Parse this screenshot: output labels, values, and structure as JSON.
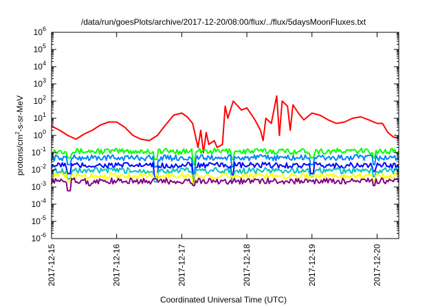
{
  "chart_data": {
    "type": "line",
    "title": "/data/run/goesPlots/archive/2017-12-20/08:00/flux/../flux/5daysMoonFluxes.txt",
    "xlabel": "Coordinated Universal Time (UTC)",
    "ylabel": {
      "pre": "protons/cm",
      "sup": "2",
      "post": "-s-sr-MeV"
    },
    "y_scale": "log",
    "ylim": [
      1e-06,
      1000000.0
    ],
    "y_ticks": [
      {
        "exp": "-6"
      },
      {
        "exp": "-5"
      },
      {
        "exp": "-4"
      },
      {
        "exp": "-3"
      },
      {
        "exp": "-2"
      },
      {
        "exp": "-1"
      },
      {
        "exp": "0"
      },
      {
        "exp": "1"
      },
      {
        "exp": "2"
      },
      {
        "exp": "3"
      },
      {
        "exp": "4"
      },
      {
        "exp": "5"
      },
      {
        "exp": "6"
      }
    ],
    "y_tick_base": "10",
    "xlim": [
      "2017-12-15 00:00",
      "2017-12-20 08:00"
    ],
    "x_ticks": [
      "2017-12-15",
      "2017-12-16",
      "2017-12-17",
      "2017-12-18",
      "2017-12-19",
      "2017-12-20"
    ],
    "grid": false,
    "legend": "none",
    "series": [
      {
        "color": "#ff0000",
        "points": [
          [
            "2017-12-15 00:00",
            3.5
          ],
          [
            "2017-12-15 03:00",
            2.0
          ],
          [
            "2017-12-15 06:00",
            1.0
          ],
          [
            "2017-12-15 09:00",
            0.6
          ],
          [
            "2017-12-15 12:00",
            1.2
          ],
          [
            "2017-12-15 15:00",
            2.0
          ],
          [
            "2017-12-15 18:00",
            4.0
          ],
          [
            "2017-12-15 21:00",
            6.0
          ],
          [
            "2017-12-16 00:00",
            6.0
          ],
          [
            "2017-12-16 03:00",
            3.0
          ],
          [
            "2017-12-16 06:00",
            1.0
          ],
          [
            "2017-12-16 09:00",
            0.6
          ],
          [
            "2017-12-16 12:00",
            0.5
          ],
          [
            "2017-12-16 15:00",
            1.0
          ],
          [
            "2017-12-16 18:00",
            4.0
          ],
          [
            "2017-12-16 21:00",
            15
          ],
          [
            "2017-12-17 00:00",
            20
          ],
          [
            "2017-12-17 02:00",
            12
          ],
          [
            "2017-12-17 04:00",
            5.0
          ],
          [
            "2017-12-17 06:00",
            0.2
          ],
          [
            "2017-12-17 07:00",
            2.0
          ],
          [
            "2017-12-17 08:00",
            0.1
          ],
          [
            "2017-12-17 09:00",
            1.5
          ],
          [
            "2017-12-17 10:00",
            0.3
          ],
          [
            "2017-12-17 12:00",
            0.5
          ],
          [
            "2017-12-17 13:00",
            0.2
          ],
          [
            "2017-12-17 15:00",
            0.3
          ],
          [
            "2017-12-17 16:00",
            50
          ],
          [
            "2017-12-17 17:00",
            10
          ],
          [
            "2017-12-17 19:00",
            100
          ],
          [
            "2017-12-17 22:00",
            30
          ],
          [
            "2017-12-18 00:00",
            40
          ],
          [
            "2017-12-18 03:00",
            8.0
          ],
          [
            "2017-12-18 05:00",
            2.0
          ],
          [
            "2017-12-18 06:00",
            0.5
          ],
          [
            "2017-12-18 07:00",
            10
          ],
          [
            "2017-12-18 09:00",
            5.0
          ],
          [
            "2017-12-18 11:00",
            200
          ],
          [
            "2017-12-18 12:00",
            1.0
          ],
          [
            "2017-12-18 13:00",
            100
          ],
          [
            "2017-12-18 15:00",
            50
          ],
          [
            "2017-12-18 16:00",
            2.0
          ],
          [
            "2017-12-18 17:00",
            60
          ],
          [
            "2017-12-18 19:00",
            20
          ],
          [
            "2017-12-18 21:00",
            8.0
          ],
          [
            "2017-12-19 00:00",
            20
          ],
          [
            "2017-12-19 03:00",
            15
          ],
          [
            "2017-12-19 06:00",
            8.0
          ],
          [
            "2017-12-19 09:00",
            5.0
          ],
          [
            "2017-12-19 12:00",
            6.0
          ],
          [
            "2017-12-19 15:00",
            10
          ],
          [
            "2017-12-19 18:00",
            12
          ],
          [
            "2017-12-19 21:00",
            8.0
          ],
          [
            "2017-12-20 00:00",
            5.0
          ],
          [
            "2017-12-20 02:00",
            5.0
          ],
          [
            "2017-12-20 04:00",
            1.5
          ],
          [
            "2017-12-20 06:00",
            0.8
          ],
          [
            "2017-12-20 08:00",
            0.7
          ]
        ]
      },
      {
        "color": "#00ff00",
        "level": 0.12,
        "dips": [
          [
            0.05,
            0.05
          ],
          [
            0.3,
            0.04
          ],
          [
            0.41,
            0.02
          ],
          [
            0.52,
            0.04
          ],
          [
            0.75,
            0.05
          ],
          [
            0.93,
            0.05
          ]
        ]
      },
      {
        "color": "#0080ff",
        "level": 0.05,
        "dips": [
          [
            0.05,
            0.02
          ],
          [
            0.3,
            0.015
          ],
          [
            0.41,
            0.006
          ],
          [
            0.52,
            0.015
          ],
          [
            0.75,
            0.02
          ],
          [
            0.93,
            0.02
          ]
        ]
      },
      {
        "color": "#0000ff",
        "level": 0.018,
        "dips": [
          [
            0.05,
            0.006
          ],
          [
            0.3,
            0.004
          ],
          [
            0.41,
            0.002
          ],
          [
            0.52,
            0.005
          ],
          [
            0.75,
            0.006
          ],
          [
            0.93,
            0.008
          ]
        ]
      },
      {
        "color": "#00c0c0",
        "level": 0.009,
        "dips": [
          [
            0.05,
            0.003
          ],
          [
            0.3,
            0.002
          ],
          [
            0.41,
            0.0015
          ],
          [
            0.52,
            0.002
          ],
          [
            0.75,
            0.004
          ],
          [
            0.93,
            0.004
          ]
        ]
      },
      {
        "color": "#ffff00",
        "level": 0.0045,
        "dips": [
          [
            0.05,
            0.002
          ],
          [
            0.41,
            0.0012
          ],
          [
            0.93,
            0.002
          ]
        ]
      },
      {
        "color": "#800080",
        "level": 0.0022,
        "dips": [
          [
            0.05,
            0.0006
          ],
          [
            0.11,
            0.0012
          ],
          [
            0.41,
            0.0012
          ],
          [
            0.93,
            0.0012
          ]
        ]
      }
    ]
  }
}
